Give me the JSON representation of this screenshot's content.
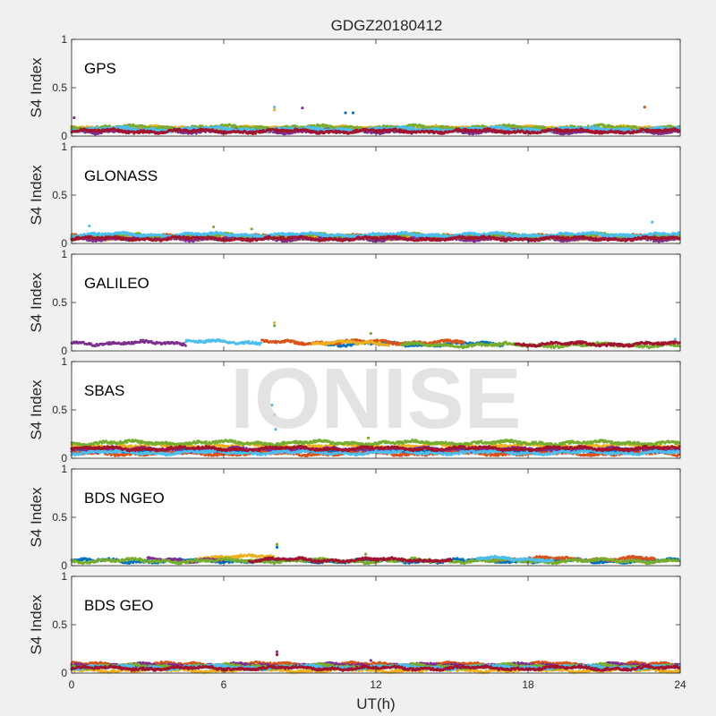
{
  "figure": {
    "title": "GDGZ20180412",
    "xlabel": "UT(h)",
    "watermark": "IONISE"
  },
  "colors": [
    "#0072bd",
    "#d95319",
    "#edb120",
    "#7e2f8e",
    "#77ac30",
    "#4dbeee",
    "#a2142f"
  ],
  "chart_data": [
    {
      "type": "scatter",
      "panel_label": "GPS",
      "ylabel": "S4 Index",
      "xlim": [
        0,
        24
      ],
      "ylim": [
        0,
        1
      ],
      "yticks": [
        0,
        0.5,
        1
      ],
      "ytick_labels": [
        "0",
        "0.5",
        "1"
      ],
      "xticks": [],
      "xtick_labels": [],
      "baseline_by_series": [
        0.06,
        0.07,
        0.08,
        0.05,
        0.09,
        0.07,
        0.05
      ],
      "series_time_ranges": [
        [
          0,
          24
        ],
        [
          0,
          24
        ],
        [
          0,
          24
        ],
        [
          0,
          24
        ],
        [
          0,
          24
        ],
        [
          0,
          24
        ],
        [
          0,
          24
        ]
      ],
      "outliers": [
        {
          "x": 8.0,
          "y": 0.3,
          "series": 5
        },
        {
          "x": 8.0,
          "y": 0.27,
          "series": 2
        },
        {
          "x": 9.1,
          "y": 0.29,
          "series": 3
        },
        {
          "x": 22.6,
          "y": 0.3,
          "series": 1
        },
        {
          "x": 10.8,
          "y": 0.24,
          "series": 0
        },
        {
          "x": 11.1,
          "y": 0.24,
          "series": 0
        },
        {
          "x": 0.1,
          "y": 0.19,
          "series": 3
        }
      ]
    },
    {
      "type": "scatter",
      "panel_label": "GLONASS",
      "ylabel": "S4 Index",
      "xlim": [
        0,
        24
      ],
      "ylim": [
        0,
        1
      ],
      "yticks": [
        0,
        0.5,
        1
      ],
      "ytick_labels": [
        "0",
        "0.5",
        "1"
      ],
      "xticks": [],
      "xtick_labels": [],
      "baseline_by_series": [
        0.06,
        0.07,
        0.06,
        0.05,
        0.08,
        0.09,
        0.05
      ],
      "series_time_ranges": [
        [
          0,
          24
        ],
        [
          0,
          24
        ],
        [
          0,
          24
        ],
        [
          0,
          24
        ],
        [
          0,
          24
        ],
        [
          0,
          24
        ],
        [
          0,
          24
        ]
      ],
      "outliers": [
        {
          "x": 0.7,
          "y": 0.18,
          "series": 5
        },
        {
          "x": 22.9,
          "y": 0.22,
          "series": 5
        },
        {
          "x": 5.6,
          "y": 0.17,
          "series": 4
        },
        {
          "x": 7.1,
          "y": 0.15,
          "series": 4
        }
      ]
    },
    {
      "type": "scatter",
      "panel_label": "GALILEO",
      "ylabel": "S4 Index",
      "xlim": [
        0,
        24
      ],
      "ylim": [
        0,
        1
      ],
      "yticks": [
        0,
        0.5,
        1
      ],
      "ytick_labels": [
        "0",
        "0.5",
        "1"
      ],
      "xticks": [],
      "xtick_labels": [],
      "baseline_by_series": [
        0.07,
        0.09,
        0.08,
        0.08,
        0.06,
        0.09,
        0.07
      ],
      "series_time_ranges": [
        [
          10,
          17
        ],
        [
          7.5,
          15.5
        ],
        [
          9.5,
          12.5
        ],
        [
          0,
          4.5
        ],
        [
          13,
          24
        ],
        [
          4.5,
          7.5
        ],
        [
          17.5,
          24
        ]
      ],
      "outliers": [
        {
          "x": 8.0,
          "y": 0.29,
          "series": 2
        },
        {
          "x": 8.0,
          "y": 0.26,
          "series": 4
        },
        {
          "x": 11.8,
          "y": 0.18,
          "series": 4
        },
        {
          "x": 23.8,
          "y": 0.12,
          "series": 5
        }
      ]
    },
    {
      "type": "scatter",
      "panel_label": "SBAS",
      "ylabel": "S4 Index",
      "xlim": [
        0,
        24
      ],
      "ylim": [
        0,
        1
      ],
      "yticks": [
        0,
        0.5,
        1
      ],
      "ytick_labels": [
        "0",
        "0.5",
        "1"
      ],
      "xticks": [],
      "xtick_labels": [],
      "baseline_by_series": [
        0.08,
        0.05,
        0.13,
        0.09,
        0.16,
        0.06,
        0.1
      ],
      "series_time_ranges": [
        [
          0,
          24
        ],
        [
          0,
          24
        ],
        [
          0,
          24
        ],
        [
          0,
          24
        ],
        [
          0,
          24
        ],
        [
          0,
          24
        ],
        [
          0,
          24
        ]
      ],
      "outliers": [
        {
          "x": 7.9,
          "y": 0.55,
          "series": 5
        },
        {
          "x": 8.0,
          "y": 0.45,
          "series": 5
        },
        {
          "x": 8.05,
          "y": 0.3,
          "series": 5
        },
        {
          "x": 11.7,
          "y": 0.21,
          "series": 4
        }
      ]
    },
    {
      "type": "scatter",
      "panel_label": "BDS NGEO",
      "ylabel": "S4 Index",
      "xlim": [
        0,
        24
      ],
      "ylim": [
        0,
        1
      ],
      "yticks": [
        0,
        0.5,
        1
      ],
      "ytick_labels": [
        "0",
        "0.5",
        "1"
      ],
      "xticks": [],
      "xtick_labels": [],
      "baseline_by_series": [
        0.05,
        0.07,
        0.09,
        0.06,
        0.05,
        0.07,
        0.06
      ],
      "series_time_ranges": [
        [
          0,
          24
        ],
        [
          16,
          23
        ],
        [
          5,
          8
        ],
        [
          3,
          6
        ],
        [
          0,
          24
        ],
        [
          16,
          19
        ],
        [
          7,
          15
        ]
      ],
      "outliers": [
        {
          "x": 8.1,
          "y": 0.22,
          "series": 4
        },
        {
          "x": 8.1,
          "y": 0.19,
          "series": 0
        },
        {
          "x": 11.6,
          "y": 0.12,
          "series": 4
        }
      ]
    },
    {
      "type": "scatter",
      "panel_label": "BDS GEO",
      "ylabel": "S4 Index",
      "xlim": [
        0,
        24
      ],
      "ylim": [
        0,
        1
      ],
      "yticks": [
        0,
        0.5,
        1
      ],
      "ytick_labels": [
        "0",
        "0.5",
        "1"
      ],
      "xticks": [
        0,
        6,
        12,
        18,
        24
      ],
      "xtick_labels": [
        "0",
        "6",
        "12",
        "18",
        "24"
      ],
      "baseline_by_series": [
        0.06,
        0.09,
        0.03,
        0.08,
        0.07,
        0.06,
        0.05
      ],
      "series_time_ranges": [
        [
          0,
          24
        ],
        [
          0,
          24
        ],
        [
          0,
          24
        ],
        [
          0,
          24
        ],
        [
          0,
          24
        ],
        [
          0,
          24
        ],
        [
          0,
          24
        ]
      ],
      "outliers": [
        {
          "x": 8.1,
          "y": 0.22,
          "series": 3
        },
        {
          "x": 8.1,
          "y": 0.19,
          "series": 6
        },
        {
          "x": 11.8,
          "y": 0.13,
          "series": 3
        }
      ]
    }
  ]
}
